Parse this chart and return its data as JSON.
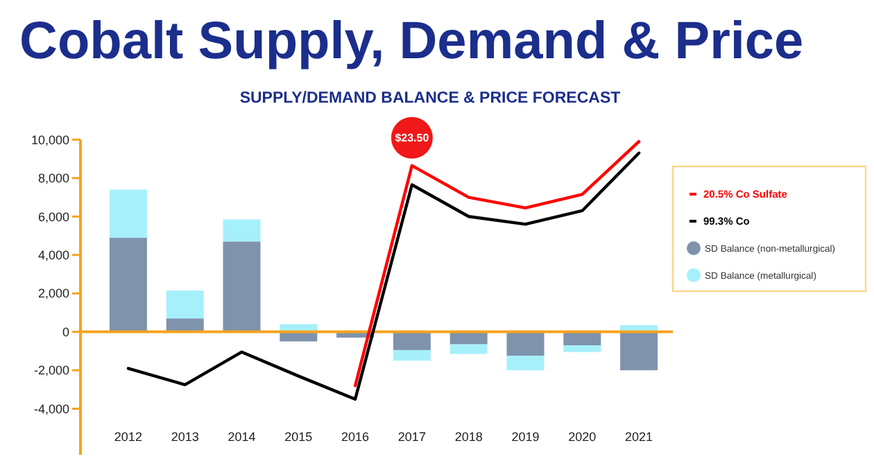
{
  "chart_data": {
    "type": "bar",
    "title": "Cobalt Supply, Demand & Price",
    "subtitle": "SUPPLY/DEMAND BALANCE & PRICE FORECAST",
    "categories": [
      "2012",
      "2013",
      "2014",
      "2015",
      "2016",
      "2017",
      "2018",
      "2019",
      "2020",
      "2021"
    ],
    "stacked": true,
    "ylim": [
      -6400,
      10000
    ],
    "yticks": [
      {
        "value": -4000,
        "label": "-4,000"
      },
      {
        "value": -2000,
        "label": "-2,000"
      },
      0,
      {
        "value": 2000,
        "label": "2,000"
      },
      {
        "value": 4000,
        "label": "4,000"
      },
      {
        "value": 6000,
        "label": "6,000"
      },
      {
        "value": 8000,
        "label": "8,000"
      },
      {
        "value": 10000,
        "label": "10,000"
      }
    ],
    "grid": false,
    "legend": "right",
    "series": [
      {
        "name": "SD Balance (non-metallurgical)",
        "color": "#7f93ad",
        "values": [
          4900,
          700,
          4700,
          -500,
          -300,
          -950,
          -650,
          -1250,
          -700,
          -2000
        ]
      },
      {
        "name": "SD Balance (metallurgical)",
        "color": "#a6f0fb",
        "values": [
          2500,
          1450,
          1150,
          400,
          0,
          -550,
          -500,
          -750,
          -350,
          350
        ]
      },
      {
        "name": "20.5% Co Sulfate",
        "type": "line",
        "color": "#ff0000",
        "values": [
          null,
          null,
          null,
          null,
          -2800,
          8650,
          7000,
          6450,
          7150,
          9900
        ]
      },
      {
        "name": "99.3% Co",
        "type": "line",
        "color": "#000000",
        "values": [
          -1900,
          -2750,
          -1050,
          -2300,
          -3500,
          7650,
          6000,
          5600,
          6300,
          9300
        ]
      }
    ],
    "ref_lines": [
      {
        "axis": "y",
        "value": 0,
        "color": "#f5a31e"
      }
    ],
    "annotations": [
      {
        "text": "$23.50",
        "x": "2017",
        "y": 8650
      }
    ]
  }
}
